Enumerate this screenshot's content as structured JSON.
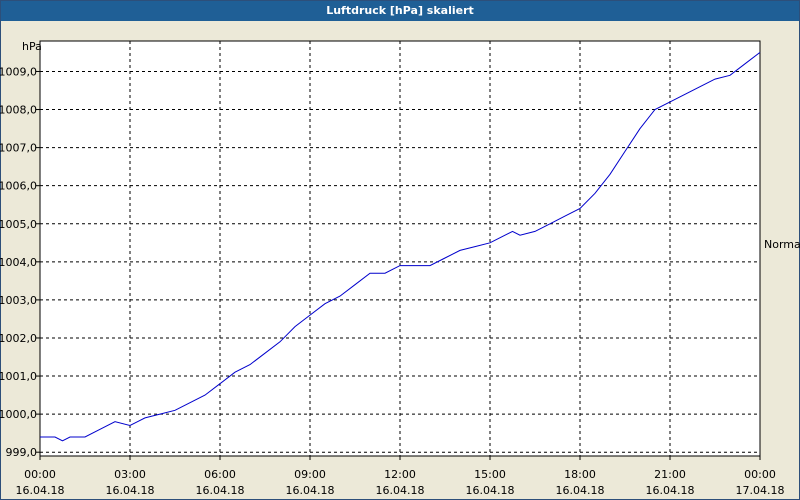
{
  "window": {
    "title": "Luftdruck [hPa] skaliert"
  },
  "chart_data": {
    "type": "line",
    "ylabel": "hPa",
    "xlim": [
      "16.04.18 00:00",
      "17.04.18 00:00"
    ],
    "ylim": [
      998.9,
      1009.8
    ],
    "grid": true,
    "y_ticks": [
      "999,0",
      "1000,0",
      "1001,0",
      "1002,0",
      "1003,0",
      "1004,0",
      "1005,0",
      "1006,0",
      "1007,0",
      "1008,0",
      "1009,0"
    ],
    "x_ticks": [
      {
        "time": "00:00",
        "date": "16.04.18"
      },
      {
        "time": "03:00",
        "date": "16.04.18"
      },
      {
        "time": "06:00",
        "date": "16.04.18"
      },
      {
        "time": "09:00",
        "date": "16.04.18"
      },
      {
        "time": "12:00",
        "date": "16.04.18"
      },
      {
        "time": "15:00",
        "date": "16.04.18"
      },
      {
        "time": "18:00",
        "date": "16.04.18"
      },
      {
        "time": "21:00",
        "date": "16.04.18"
      },
      {
        "time": "00:00",
        "date": "17.04.18"
      }
    ],
    "right_label": "Normal",
    "line_color": "#0000cc",
    "series": [
      {
        "x": [
          "00:00",
          "00:30",
          "00:45",
          "01:00",
          "01:30",
          "02:00",
          "02:30",
          "03:00",
          "03:15",
          "03:30",
          "04:00",
          "04:30",
          "05:00",
          "05:30",
          "06:00",
          "06:30",
          "07:00",
          "07:30",
          "08:00",
          "08:30",
          "09:00",
          "09:30",
          "10:00",
          "10:30",
          "11:00",
          "11:30",
          "12:00",
          "12:30",
          "13:00",
          "13:30",
          "14:00",
          "14:30",
          "15:00",
          "15:30",
          "15:45",
          "16:00",
          "16:30",
          "17:00",
          "17:30",
          "18:00",
          "18:30",
          "19:00",
          "19:30",
          "20:00",
          "20:30",
          "21:00",
          "21:30",
          "22:00",
          "22:30",
          "23:00",
          "23:30",
          "24:00"
        ],
        "values": [
          999.4,
          999.4,
          999.3,
          999.4,
          999.4,
          999.6,
          999.8,
          999.7,
          999.8,
          999.9,
          1000.0,
          1000.1,
          1000.3,
          1000.5,
          1000.8,
          1001.1,
          1001.3,
          1001.6,
          1001.9,
          1002.3,
          1002.6,
          1002.9,
          1003.1,
          1003.4,
          1003.7,
          1003.7,
          1003.9,
          1003.9,
          1003.9,
          1004.1,
          1004.3,
          1004.4,
          1004.5,
          1004.7,
          1004.8,
          1004.7,
          1004.8,
          1005.0,
          1005.2,
          1005.4,
          1005.8,
          1006.3,
          1006.9,
          1007.5,
          1008.0,
          1008.2,
          1008.4,
          1008.6,
          1008.8,
          1008.9,
          1009.2,
          1009.5
        ]
      }
    ]
  }
}
